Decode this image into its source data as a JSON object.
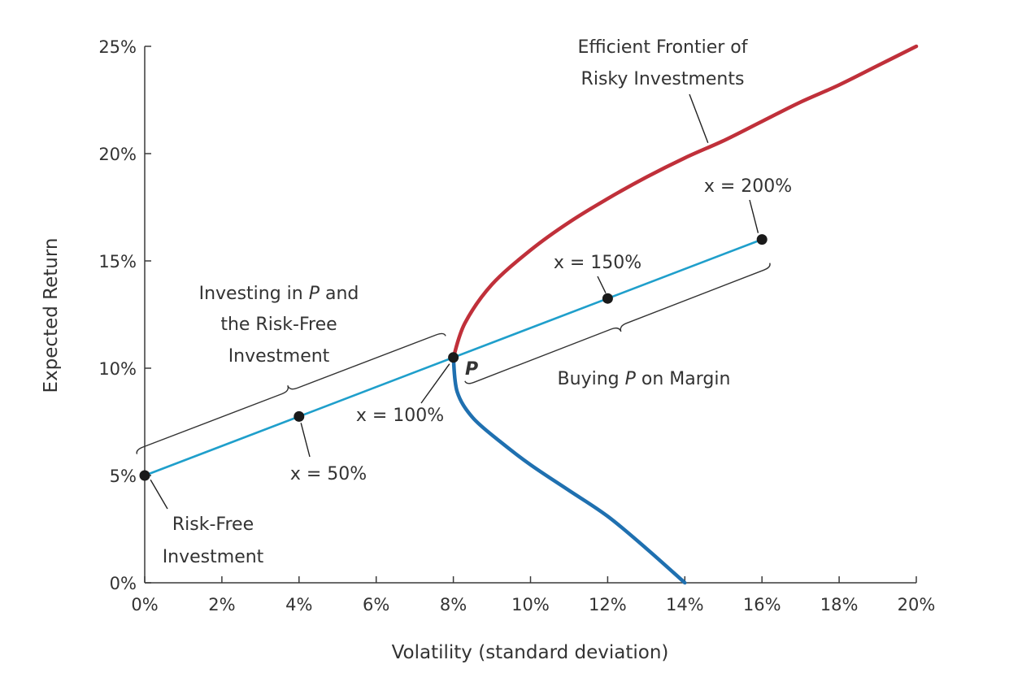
{
  "chart_data": {
    "type": "line",
    "xlabel": "Volatility (standard deviation)",
    "ylabel": "Expected Return",
    "xlim": [
      0,
      20
    ],
    "ylim": [
      0,
      25
    ],
    "x_ticks": [
      0,
      2,
      4,
      6,
      8,
      10,
      12,
      14,
      16,
      18,
      20
    ],
    "x_tick_labels": [
      "0%",
      "2%",
      "4%",
      "6%",
      "8%",
      "10%",
      "12%",
      "14%",
      "16%",
      "18%",
      "20%"
    ],
    "y_ticks": [
      0,
      5,
      10,
      15,
      20,
      25
    ],
    "y_tick_labels": [
      "0%",
      "5%",
      "10%",
      "15%",
      "20%",
      "25%"
    ],
    "grid": false,
    "series": [
      {
        "name": "Efficient Frontier of Risky Investments",
        "color": "#c0303a",
        "x": [
          8.0,
          8.3,
          9.0,
          10.0,
          11.0,
          12.0,
          13.0,
          14.0,
          15.0,
          16.0,
          17.0,
          18.0,
          19.0,
          20.0
        ],
        "y": [
          10.5,
          12.1,
          13.9,
          15.5,
          16.8,
          17.9,
          18.9,
          19.8,
          20.6,
          21.5,
          22.4,
          23.2,
          24.1,
          25.0
        ]
      },
      {
        "name": "",
        "color": "#1f70b0",
        "x": [
          8.0,
          8.1,
          8.5,
          9.2,
          10.0,
          11.0,
          12.0,
          13.0,
          14.0
        ],
        "y": [
          10.5,
          8.9,
          7.7,
          6.6,
          5.5,
          4.3,
          3.1,
          1.6,
          0.0
        ]
      },
      {
        "name": "",
        "color": "#1f9fcb",
        "x": [
          0,
          16
        ],
        "y": [
          5.0,
          16.0
        ]
      }
    ],
    "points": [
      {
        "x": 0,
        "y": 5.0
      },
      {
        "x": 4,
        "y": 7.75
      },
      {
        "x": 8,
        "y": 10.5
      },
      {
        "x": 12,
        "y": 13.25
      },
      {
        "x": 16,
        "y": 16.0
      }
    ],
    "annotations": {
      "frontier_line1": "Efficient Frontier of",
      "frontier_line2": "Risky Investments",
      "x200": "x = 200%",
      "x150": "x = 150%",
      "x100": "x = 100%",
      "x50": "x = 50%",
      "p_label": "P",
      "investing_line1_a": "Investing in ",
      "investing_line1_p": "P",
      "investing_line1_b": " and",
      "investing_line2": "the Risk-Free",
      "investing_line3": "Investment",
      "margin_a": "Buying ",
      "margin_p": "P",
      "margin_b": " on Margin",
      "riskfree_line1": "Risk-Free",
      "riskfree_line2": "Investment"
    }
  }
}
